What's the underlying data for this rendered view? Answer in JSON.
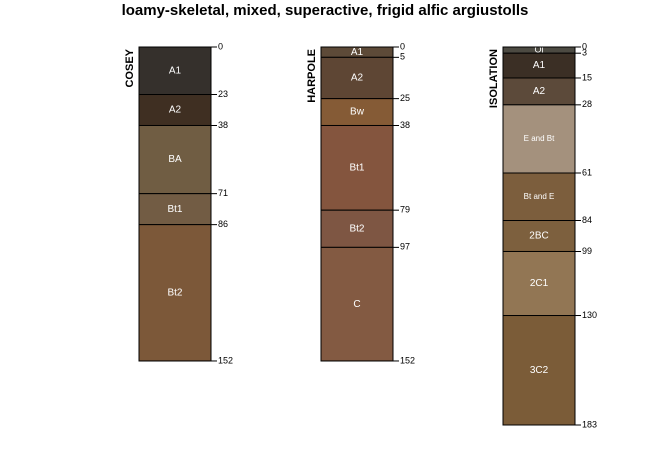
{
  "title": "loamy-skeletal, mixed, superactive, frigid alfic argiustolls",
  "chart_data": {
    "type": "soil_profile_diagram",
    "title": "loamy-skeletal, mixed, superactive, frigid alfic argiustolls",
    "depth_units": "cm",
    "max_depth": 183,
    "profiles": [
      {
        "name": "COSEY",
        "horizons": [
          {
            "name": "A1",
            "top": 0,
            "bottom": 23,
            "color": "#35302c"
          },
          {
            "name": "A2",
            "top": 23,
            "bottom": 38,
            "color": "#3f2f22"
          },
          {
            "name": "BA",
            "top": 38,
            "bottom": 71,
            "color": "#705d43"
          },
          {
            "name": "Bt1",
            "top": 71,
            "bottom": 86,
            "color": "#725c44"
          },
          {
            "name": "Bt2",
            "top": 86,
            "bottom": 152,
            "color": "#7c5839"
          }
        ],
        "depth_labels": [
          "0",
          "23",
          "38",
          "71",
          "86",
          "152"
        ]
      },
      {
        "name": "HARPOLE",
        "horizons": [
          {
            "name": "A1",
            "top": 0,
            "bottom": 5,
            "color": "#5d4a38"
          },
          {
            "name": "A2",
            "top": 5,
            "bottom": 25,
            "color": "#5e4634"
          },
          {
            "name": "Bw",
            "top": 25,
            "bottom": 38,
            "color": "#855b36"
          },
          {
            "name": "Bt1",
            "top": 38,
            "bottom": 79,
            "color": "#84553e"
          },
          {
            "name": "Bt2",
            "top": 79,
            "bottom": 97,
            "color": "#7e5643"
          },
          {
            "name": "C",
            "top": 97,
            "bottom": 152,
            "color": "#835a42"
          }
        ],
        "depth_labels": [
          "0",
          "5",
          "25",
          "38",
          "79",
          "97",
          "152"
        ]
      },
      {
        "name": "ISOLATION",
        "horizons": [
          {
            "name": "Oi",
            "top": 0,
            "bottom": 3,
            "color": "#4c4a42"
          },
          {
            "name": "A1",
            "top": 3,
            "bottom": 15,
            "color": "#3b2f25"
          },
          {
            "name": "A2",
            "top": 15,
            "bottom": 28,
            "color": "#5c4a3a"
          },
          {
            "name": "E and Bt",
            "top": 28,
            "bottom": 61,
            "color": "#a4917d"
          },
          {
            "name": "Bt and E",
            "top": 61,
            "bottom": 84,
            "color": "#7c5e3d"
          },
          {
            "name": "2BC",
            "top": 84,
            "bottom": 99,
            "color": "#7d603e"
          },
          {
            "name": "2C1",
            "top": 99,
            "bottom": 130,
            "color": "#927654"
          },
          {
            "name": "3C2",
            "top": 130,
            "bottom": 183,
            "color": "#7b5c38"
          }
        ],
        "depth_labels": [
          "0",
          "3",
          "15",
          "28",
          "61",
          "84",
          "99",
          "130",
          "183"
        ]
      }
    ]
  }
}
